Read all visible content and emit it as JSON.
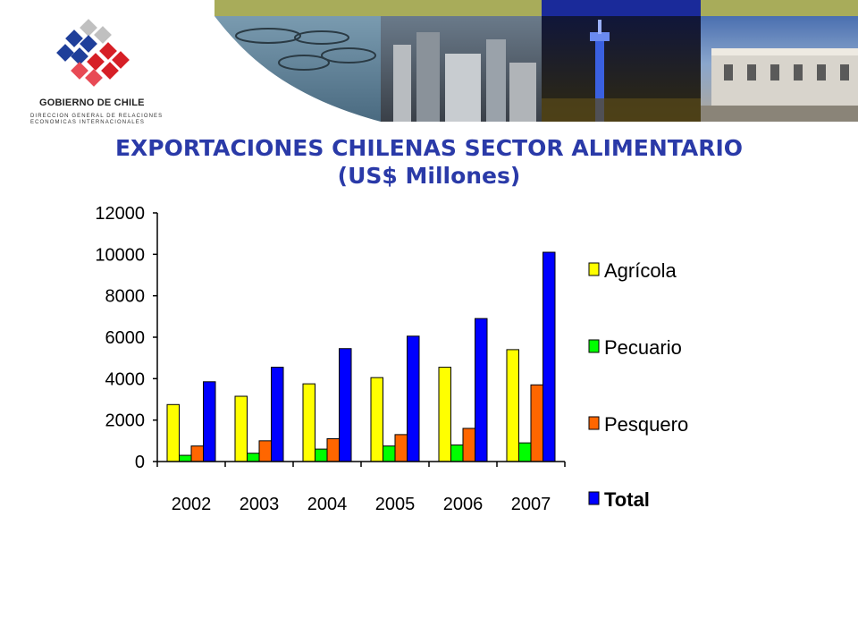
{
  "header": {
    "org_name": "GOBIERNO DE CHILE",
    "org_sub_line1": "DIRECCION GENERAL DE RELACIONES",
    "org_sub_line2": "ECONOMICAS INTERNACIONALES"
  },
  "title_line1": "EXPORTACIONES  CHILENAS SECTOR ALIMENTARIO",
  "title_line2": "(US$ Millones)",
  "chart_data": {
    "type": "bar",
    "title": "EXPORTACIONES  CHILENAS SECTOR ALIMENTARIO (US$ Millones)",
    "categories": [
      "2002",
      "2003",
      "2004",
      "2005",
      "2006",
      "2007"
    ],
    "series": [
      {
        "name": "Agrícola",
        "color": "#ffff00",
        "values": [
          2750,
          3150,
          3750,
          4050,
          4550,
          5400
        ]
      },
      {
        "name": "Pecuario",
        "color": "#00ff00",
        "values": [
          300,
          400,
          600,
          750,
          800,
          900
        ]
      },
      {
        "name": "Pesquero",
        "color": "#ff6600",
        "values": [
          750,
          1000,
          1100,
          1300,
          1600,
          3700
        ]
      },
      {
        "name": "Total",
        "color": "#0000ff",
        "values": [
          3850,
          4550,
          5450,
          6050,
          6900,
          10100
        ]
      }
    ],
    "ylim": [
      0,
      12000
    ],
    "yticks": [
      "0",
      "2000",
      "4000",
      "6000",
      "8000",
      "10000",
      "12000"
    ],
    "xlabel": "",
    "ylabel": "",
    "grid": false,
    "legend_position": "right"
  }
}
